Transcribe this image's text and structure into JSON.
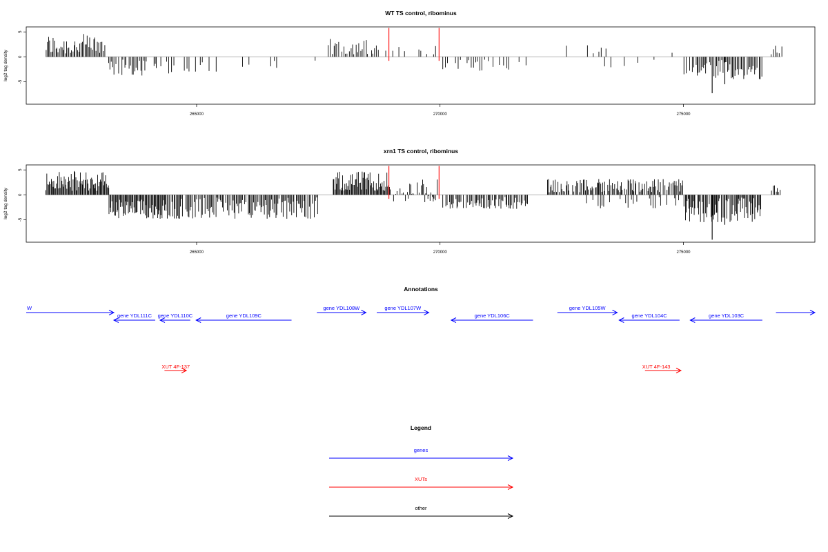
{
  "colors": {
    "gene": "#0000ff",
    "xut": "#ff0000",
    "other": "#000000",
    "signal": "#000000",
    "highlight": "#ff0000",
    "baseline": "#999999"
  },
  "chart_data": [
    {
      "type": "bar",
      "title": "WT TS control, ribominus",
      "ylabel": "log2 tag density",
      "xlim": [
        261500,
        277700
      ],
      "ylim": [
        -9.5,
        6
      ],
      "xticks": [
        265000,
        270000,
        275000
      ],
      "xtick_labels": [
        "265000",
        "270000",
        "275000"
      ],
      "yticks": [
        5,
        0,
        -5
      ],
      "ytick_labels": [
        "5",
        "0",
        "-5"
      ],
      "highlight_positions": [
        268950,
        269980
      ],
      "highlight_height": 5.8,
      "segments": [
        {
          "from": 261900,
          "to": 263100,
          "min": 0.5,
          "max": 4.6,
          "step": 25
        },
        {
          "from": 263150,
          "to": 264600,
          "min": -3.8,
          "max": -0.5,
          "step": 30,
          "sparse": 0.7
        },
        {
          "from": 264700,
          "to": 265400,
          "min": -3.0,
          "max": -0.5,
          "step": 45,
          "sparse": 0.5
        },
        {
          "from": 265800,
          "to": 266900,
          "min": -2.2,
          "max": -0.5,
          "step": 60,
          "sparse": 0.45
        },
        {
          "from": 267000,
          "to": 267700,
          "min": -1.5,
          "max": -0.5,
          "step": 70,
          "sparse": 0.4
        },
        {
          "from": 267700,
          "to": 268700,
          "min": 0.5,
          "max": 3.6,
          "step": 35,
          "sparse": 0.8
        },
        {
          "from": 268700,
          "to": 269900,
          "min": 0.5,
          "max": 2.4,
          "step": 60,
          "sparse": 0.45
        },
        {
          "from": 270000,
          "to": 271800,
          "min": -2.8,
          "max": -0.5,
          "step": 45,
          "sparse": 0.6
        },
        {
          "from": 272500,
          "to": 273500,
          "min": 0.5,
          "max": 2.6,
          "step": 80,
          "sparse": 0.4
        },
        {
          "from": 273200,
          "to": 274400,
          "min": -2.2,
          "max": -0.5,
          "step": 70,
          "sparse": 0.4
        },
        {
          "from": 274400,
          "to": 275000,
          "min": 0.5,
          "max": 2.0,
          "step": 80,
          "sparse": 0.4
        },
        {
          "from": 275000,
          "to": 276600,
          "min": -4.5,
          "max": -0.5,
          "step": 25,
          "sparse": 0.85
        },
        {
          "from": 276800,
          "to": 277000,
          "min": 0.5,
          "max": 2.6,
          "step": 40
        }
      ],
      "spikes": [
        {
          "x": 275590,
          "y": -7.3
        },
        {
          "x": 275850,
          "y": -5.5
        }
      ]
    },
    {
      "type": "bar",
      "title": "xrn1 TS control, ribominus",
      "ylabel": "log2 tag density",
      "xlim": [
        261500,
        277700
      ],
      "ylim": [
        -9.5,
        6
      ],
      "xticks": [
        265000,
        270000,
        275000
      ],
      "xtick_labels": [
        "265000",
        "270000",
        "275000"
      ],
      "yticks": [
        5,
        0,
        -5
      ],
      "ytick_labels": [
        "5",
        "0",
        "-5"
      ],
      "highlight_positions": [
        268950,
        269980
      ],
      "highlight_height": 5.8,
      "segments": [
        {
          "from": 261900,
          "to": 263200,
          "min": 0.8,
          "max": 4.8,
          "step": 18
        },
        {
          "from": 263200,
          "to": 264400,
          "min": -4.8,
          "max": -0.8,
          "step": 18
        },
        {
          "from": 264400,
          "to": 267500,
          "min": -4.8,
          "max": -0.5,
          "step": 22,
          "sparse": 0.85
        },
        {
          "from": 267800,
          "to": 268950,
          "min": 0.8,
          "max": 4.8,
          "step": 18
        },
        {
          "from": 268950,
          "to": 269950,
          "min": -1.5,
          "max": 3.2,
          "step": 22,
          "sparse": 0.8
        },
        {
          "from": 270050,
          "to": 271800,
          "min": -2.8,
          "max": -0.4,
          "step": 22,
          "sparse": 0.8
        },
        {
          "from": 272200,
          "to": 275000,
          "min": 0.5,
          "max": 3.2,
          "step": 20,
          "sparse": 0.85
        },
        {
          "from": 273000,
          "to": 275000,
          "min": -2.8,
          "max": -0.4,
          "step": 40,
          "sparse": 0.5
        },
        {
          "from": 275000,
          "to": 276600,
          "min": -5.5,
          "max": -0.5,
          "step": 18,
          "sparse": 0.9
        },
        {
          "from": 276800,
          "to": 277000,
          "min": 0.5,
          "max": 3.2,
          "step": 30
        }
      ],
      "spikes": [
        {
          "x": 275590,
          "y": -9.0
        },
        {
          "x": 275850,
          "y": -6.0
        }
      ]
    }
  ],
  "annotations": {
    "title": "Annotations",
    "genes": [
      {
        "label": "W",
        "start": 261500,
        "end": 263300,
        "strand": "+",
        "row": 0
      },
      {
        "label": "gene YDL111C",
        "start": 263300,
        "end": 264150,
        "strand": "-",
        "row": 1
      },
      {
        "label": "gene YDL110C",
        "start": 264250,
        "end": 264870,
        "strand": "-",
        "row": 1
      },
      {
        "label": "gene YDL109C",
        "start": 264990,
        "end": 266950,
        "strand": "-",
        "row": 1
      },
      {
        "label": "gene YDL108W",
        "start": 267470,
        "end": 268480,
        "strand": "+",
        "row": 0
      },
      {
        "label": "gene YDL107W",
        "start": 268700,
        "end": 269770,
        "strand": "+",
        "row": 0
      },
      {
        "label": "gene YDL106C",
        "start": 270230,
        "end": 271910,
        "strand": "-",
        "row": 1
      },
      {
        "label": "gene YDL105W",
        "start": 272410,
        "end": 273640,
        "strand": "+",
        "row": 0
      },
      {
        "label": "gene YDL104C",
        "start": 273680,
        "end": 274920,
        "strand": "-",
        "row": 1
      },
      {
        "label": "gene YDL103C",
        "start": 275140,
        "end": 276620,
        "strand": "-",
        "row": 1
      },
      {
        "label": "",
        "start": 276900,
        "end": 277700,
        "strand": "+",
        "row": 0
      }
    ],
    "xuts": [
      {
        "label": "XUT 4F-137",
        "start": 264340,
        "end": 264790,
        "strand": "+"
      },
      {
        "label": "XUT 4F-143",
        "start": 274210,
        "end": 274950,
        "strand": "+"
      }
    ]
  },
  "legend": {
    "title": "Legend",
    "items": [
      {
        "label": "genes",
        "kind": "gene"
      },
      {
        "label": "XUTs",
        "kind": "xut"
      },
      {
        "label": "other",
        "kind": "other"
      }
    ]
  }
}
